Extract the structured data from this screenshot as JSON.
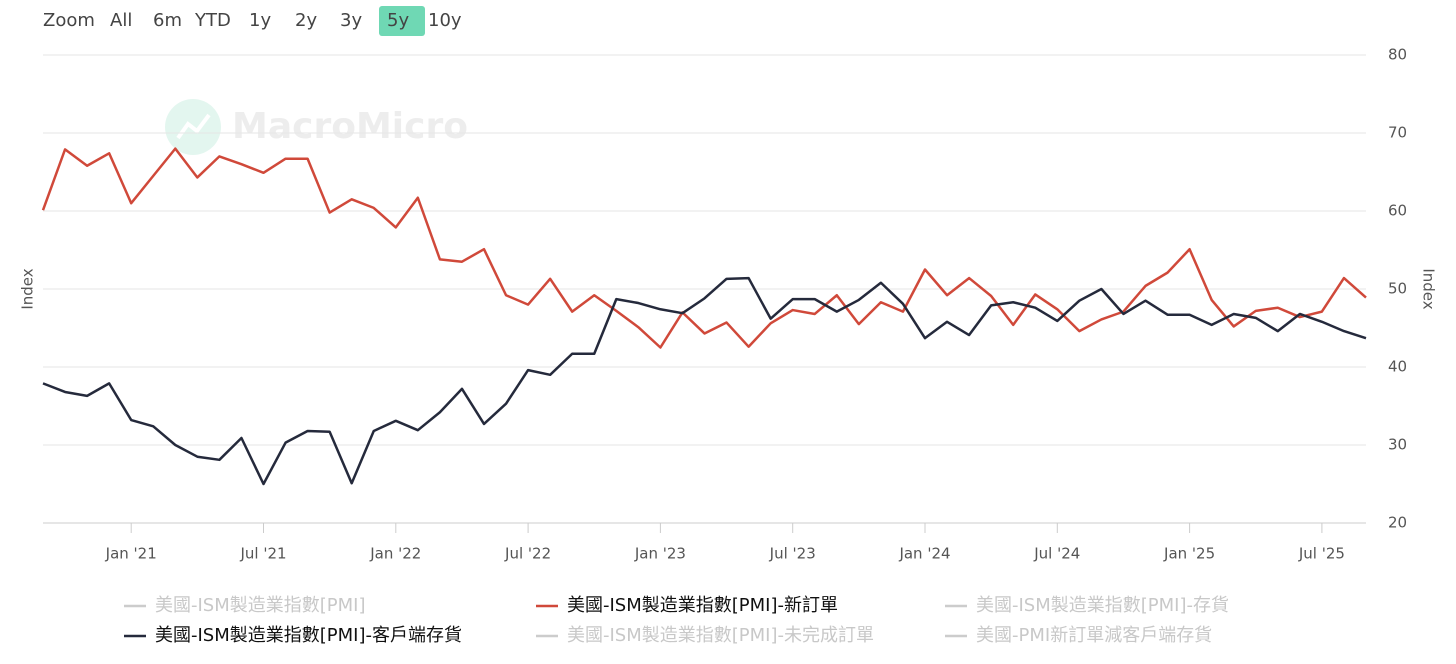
{
  "chart_data": {
    "type": "line",
    "watermark": "MacroMicro",
    "range_selector": {
      "label": "Zoom",
      "buttons": [
        "All",
        "6m",
        "YTD",
        "1y",
        "2y",
        "3y",
        "5y",
        "10y"
      ],
      "active": "5y"
    },
    "ylabel": "Index",
    "ylabel_right": "Index",
    "x": [
      "2020-09",
      "2020-10",
      "2020-11",
      "2020-12",
      "2021-01",
      "2021-02",
      "2021-03",
      "2021-04",
      "2021-05",
      "2021-06",
      "2021-07",
      "2021-08",
      "2021-09",
      "2021-10",
      "2021-11",
      "2021-12",
      "2022-01",
      "2022-02",
      "2022-03",
      "2022-04",
      "2022-05",
      "2022-06",
      "2022-07",
      "2022-08",
      "2022-09",
      "2022-10",
      "2022-11",
      "2022-12",
      "2023-01",
      "2023-02",
      "2023-03",
      "2023-04",
      "2023-05",
      "2023-06",
      "2023-07",
      "2023-08",
      "2023-09",
      "2023-10",
      "2023-11",
      "2023-12",
      "2024-01",
      "2024-02",
      "2024-03",
      "2024-04",
      "2024-05",
      "2024-06",
      "2024-07",
      "2024-08",
      "2024-09",
      "2024-10",
      "2024-11",
      "2024-12",
      "2025-01",
      "2025-02",
      "2025-03",
      "2025-04",
      "2025-05",
      "2025-06",
      "2025-07",
      "2025-08",
      "2025-09"
    ],
    "xticks": [
      {
        "value": "2021-01",
        "label": "Jan '21"
      },
      {
        "value": "2021-07",
        "label": "Jul '21"
      },
      {
        "value": "2022-01",
        "label": "Jan '22"
      },
      {
        "value": "2022-07",
        "label": "Jul '22"
      },
      {
        "value": "2023-01",
        "label": "Jan '23"
      },
      {
        "value": "2023-07",
        "label": "Jul '23"
      },
      {
        "value": "2024-01",
        "label": "Jan '24"
      },
      {
        "value": "2024-07",
        "label": "Jul '24"
      },
      {
        "value": "2025-01",
        "label": "Jan '25"
      },
      {
        "value": "2025-07",
        "label": "Jul '25"
      }
    ],
    "ylim": [
      20,
      80
    ],
    "yticks": [
      20,
      30,
      40,
      50,
      60,
      70,
      80
    ],
    "grid": true,
    "series": [
      {
        "name": "美國-ISM製造業指數[PMI]",
        "color": "#cccccc",
        "visible": false
      },
      {
        "name": "美國-ISM製造業指數[PMI]-新訂單",
        "color": "#d0493a",
        "visible": true,
        "values": [
          60.1,
          67.9,
          65.8,
          67.4,
          61.0,
          64.5,
          68.0,
          64.3,
          67.0,
          66.0,
          64.9,
          66.7,
          66.7,
          59.8,
          61.5,
          60.4,
          57.9,
          61.7,
          53.8,
          53.5,
          55.1,
          49.2,
          48.0,
          51.3,
          47.1,
          49.2,
          47.2,
          45.1,
          42.5,
          47.0,
          44.3,
          45.7,
          42.6,
          45.6,
          47.3,
          46.8,
          49.2,
          45.5,
          48.3,
          47.1,
          52.5,
          49.2,
          51.4,
          49.1,
          45.4,
          49.3,
          47.4,
          44.6,
          46.1,
          47.1,
          50.4,
          52.1,
          55.1,
          48.6,
          45.2,
          47.2,
          47.6,
          46.4,
          47.1,
          51.4,
          48.9
        ]
      },
      {
        "name": "美國-ISM製造業指數[PMI]-存貨",
        "color": "#cccccc",
        "visible": false
      },
      {
        "name": "美國-ISM製造業指數[PMI]-客戶端存貨",
        "color": "#252a3c",
        "visible": true,
        "values": [
          37.9,
          36.8,
          36.3,
          37.9,
          33.2,
          32.4,
          30.0,
          28.5,
          28.1,
          30.9,
          25.0,
          30.3,
          31.8,
          31.7,
          25.1,
          31.8,
          33.1,
          31.9,
          34.2,
          37.2,
          32.7,
          35.3,
          39.6,
          39.0,
          41.7,
          41.7,
          48.7,
          48.2,
          47.4,
          46.9,
          48.8,
          51.3,
          51.4,
          46.2,
          48.7,
          48.7,
          47.1,
          48.6,
          50.8,
          48.1,
          43.7,
          45.8,
          44.1,
          47.9,
          48.3,
          47.6,
          45.9,
          48.5,
          50.0,
          46.8,
          48.5,
          46.7,
          46.7,
          45.4,
          46.8,
          46.3,
          44.6,
          46.8,
          45.8,
          44.6,
          43.7
        ]
      },
      {
        "name": "美國-ISM製造業指數[PMI]-未完成訂單",
        "color": "#cccccc",
        "visible": false
      },
      {
        "name": "美國-PMI新訂單減客戶端存貨",
        "color": "#cccccc",
        "visible": false
      }
    ]
  }
}
